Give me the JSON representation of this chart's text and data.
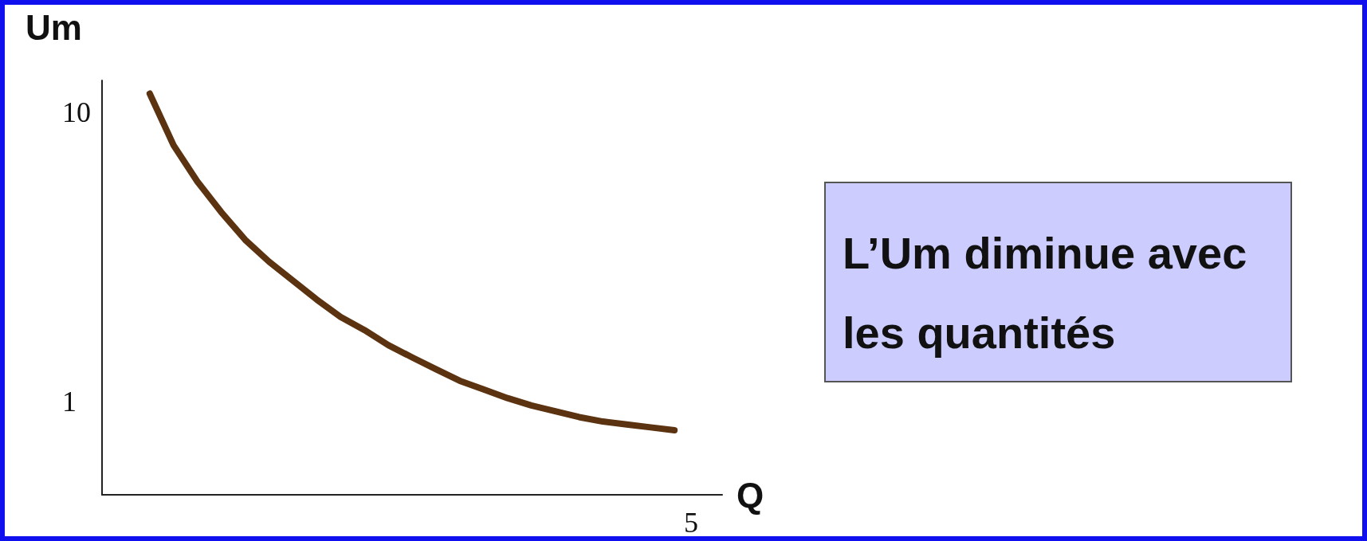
{
  "chart_data": {
    "type": "line",
    "xlabel": "Q",
    "ylabel": "Um",
    "categories": [
      null,
      null,
      null,
      null,
      null,
      null,
      null,
      null,
      null,
      null,
      null,
      null,
      null,
      null,
      null,
      null,
      null,
      null,
      null,
      null,
      null,
      null,
      null,
      null,
      null,
      null,
      null
    ],
    "series": [
      {
        "color": "#5c3310",
        "values": [
          null,
          null,
          10.59,
          8.98,
          7.85,
          6.9,
          6.04,
          5.36,
          4.77,
          4.18,
          3.64,
          3.23,
          2.76,
          2.38,
          2.01,
          1.65,
          1.38,
          1.11,
          0.88,
          0.7,
          0.52,
          0.38,
          0.29,
          0.2,
          0.11,
          null,
          null
        ]
      }
    ],
    "ylim": [
      -1.9,
      11
    ],
    "yticks": [
      1,
      10
    ],
    "grid": false,
    "line_style": "solid",
    "annotations": [
      "L’Um diminue avec les quantités",
      "5"
    ]
  }
}
